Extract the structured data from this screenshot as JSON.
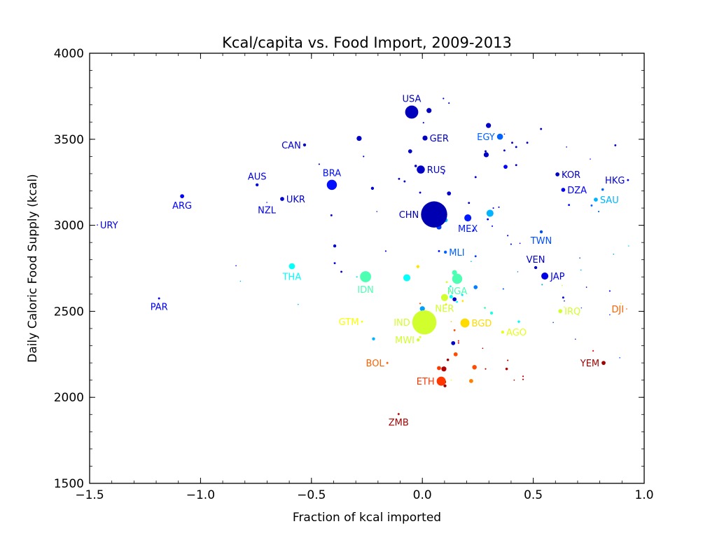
{
  "chart_data": {
    "type": "scatter",
    "title": "Kcal/capita vs. Food Import, 2009-2013",
    "xlabel": "Fraction of kcal imported",
    "ylabel": "Daily Caloric Food Supply (kcal)",
    "xlim": [
      -1.5,
      1.0
    ],
    "ylim": [
      1500,
      4000
    ],
    "xticks": [
      -1.5,
      -1.0,
      -0.5,
      0.0,
      0.5,
      1.0
    ],
    "xtick_labels": [
      "−1.5",
      "−1.0",
      "−0.5",
      "0.0",
      "0.5",
      "1.0"
    ],
    "yticks": [
      1500,
      2000,
      2500,
      3000,
      3500,
      4000
    ],
    "ytick_labels": [
      "1500",
      "2000",
      "2500",
      "3000",
      "3500",
      "4000"
    ],
    "grid": false,
    "legend": "none",
    "colormap": "jet",
    "color_note": "point color encodes a per-country value on the jet colormap (0 = dark blue, 1 = dark red); marker size encodes population",
    "labeled_points": [
      {
        "label": "URY",
        "x": -1.465,
        "y": 3002,
        "c": 0.1,
        "s": 1,
        "label_side": "right"
      },
      {
        "label": "ARG",
        "x": -1.083,
        "y": 3169,
        "c": 0.12,
        "s": 4,
        "label_side": "below"
      },
      {
        "label": "PAR",
        "x": -1.187,
        "y": 2575,
        "c": 0.12,
        "s": 2,
        "label_side": "below"
      },
      {
        "label": "AUS",
        "x": -0.745,
        "y": 3235,
        "c": 0.1,
        "s": 3,
        "label_side": "above"
      },
      {
        "label": "NZL",
        "x": -0.701,
        "y": 3133,
        "c": 0.1,
        "s": 1,
        "label_side": "below"
      },
      {
        "label": "UKR",
        "x": -0.632,
        "y": 3153,
        "c": 0.08,
        "s": 4,
        "label_side": "right"
      },
      {
        "label": "CAN",
        "x": -0.531,
        "y": 3467,
        "c": 0.08,
        "s": 3,
        "label_side": "left"
      },
      {
        "label": "BRA",
        "x": -0.408,
        "y": 3235,
        "c": 0.14,
        "s": 10,
        "label_side": "above"
      },
      {
        "label": "THA",
        "x": -0.588,
        "y": 2762,
        "c": 0.38,
        "s": 6,
        "label_side": "below"
      },
      {
        "label": "IDN",
        "x": -0.256,
        "y": 2701,
        "c": 0.45,
        "s": 11,
        "label_side": "below"
      },
      {
        "label": "USA",
        "x": -0.048,
        "y": 3658,
        "c": 0.06,
        "s": 13,
        "label_side": "above"
      },
      {
        "label": "GER",
        "x": 0.012,
        "y": 3507,
        "c": 0.06,
        "s": 5,
        "label_side": "right"
      },
      {
        "label": "RUS",
        "x": -0.007,
        "y": 3324,
        "c": 0.07,
        "s": 8,
        "label_side": "right"
      },
      {
        "label": "CHN",
        "x": 0.053,
        "y": 3063,
        "c": 0.05,
        "s": 26,
        "label_side": "left"
      },
      {
        "label": "MEX",
        "x": 0.205,
        "y": 3043,
        "c": 0.15,
        "s": 7,
        "label_side": "below"
      },
      {
        "label": "MLI",
        "x": 0.104,
        "y": 2844,
        "c": 0.22,
        "s": 3,
        "label_side": "right"
      },
      {
        "label": "EGY",
        "x": 0.35,
        "y": 3515,
        "c": 0.22,
        "s": 6,
        "label_side": "left"
      },
      {
        "label": "KOR",
        "x": 0.609,
        "y": 3296,
        "c": 0.07,
        "s": 4,
        "label_side": "right"
      },
      {
        "label": "DZA",
        "x": 0.635,
        "y": 3206,
        "c": 0.12,
        "s": 4,
        "label_side": "right"
      },
      {
        "label": "HKG",
        "x": 0.927,
        "y": 3263,
        "c": 0.08,
        "s": 2,
        "label_side": "left"
      },
      {
        "label": "SAU",
        "x": 0.782,
        "y": 3149,
        "c": 0.3,
        "s": 4,
        "label_side": "right"
      },
      {
        "label": "TWN",
        "x": 0.536,
        "y": 2962,
        "c": 0.2,
        "s": 3,
        "label_side": "below"
      },
      {
        "label": "VEN",
        "x": 0.511,
        "y": 2754,
        "c": 0.07,
        "s": 3,
        "label_side": "above"
      },
      {
        "label": "JAP",
        "x": 0.552,
        "y": 2705,
        "c": 0.1,
        "s": 7,
        "label_side": "right"
      },
      {
        "label": "NGA",
        "x": 0.157,
        "y": 2689,
        "c": 0.45,
        "s": 10,
        "label_side": "below"
      },
      {
        "label": "NER",
        "x": 0.1,
        "y": 2580,
        "c": 0.58,
        "s": 7,
        "label_side": "below"
      },
      {
        "label": "IND",
        "x": 0.009,
        "y": 2436,
        "c": 0.58,
        "s": 24,
        "label_side": "left"
      },
      {
        "label": "BGD",
        "x": 0.192,
        "y": 2432,
        "c": 0.66,
        "s": 9,
        "label_side": "right"
      },
      {
        "label": "GTM",
        "x": -0.272,
        "y": 2440,
        "c": 0.62,
        "s": 2,
        "label_side": "left"
      },
      {
        "label": "MWI",
        "x": -0.019,
        "y": 2334,
        "c": 0.58,
        "s": 3,
        "label_side": "left"
      },
      {
        "label": "AGO",
        "x": 0.362,
        "y": 2379,
        "c": 0.6,
        "s": 3,
        "label_side": "right"
      },
      {
        "label": "IRQ",
        "x": 0.622,
        "y": 2501,
        "c": 0.58,
        "s": 4,
        "label_side": "right"
      },
      {
        "label": "DJI",
        "x": 0.921,
        "y": 2514,
        "c": 0.78,
        "s": 1,
        "label_side": "left"
      },
      {
        "label": "BOL",
        "x": -0.158,
        "y": 2200,
        "c": 0.78,
        "s": 2,
        "label_side": "left"
      },
      {
        "label": "ETH",
        "x": 0.085,
        "y": 2094,
        "c": 0.82,
        "s": 9,
        "label_side": "left"
      },
      {
        "label": "YEM",
        "x": 0.817,
        "y": 2200,
        "c": 0.97,
        "s": 4,
        "label_side": "left"
      },
      {
        "label": "ZMB",
        "x": -0.107,
        "y": 1903,
        "c": 0.97,
        "s": 2,
        "label_side": "below"
      }
    ],
    "unlabeled_points": [
      {
        "x": 0.03,
        "y": 3667,
        "c": 0.06,
        "s": 5
      },
      {
        "x": 0.095,
        "y": 3737,
        "c": 0.06,
        "s": 1.5
      },
      {
        "x": 0.12,
        "y": 3710,
        "c": 0.06,
        "s": 1.5
      },
      {
        "x": 0.005,
        "y": 3596,
        "c": 0.06,
        "s": 1.5
      },
      {
        "x": -0.285,
        "y": 3505,
        "c": 0.07,
        "s": 5
      },
      {
        "x": -0.265,
        "y": 3400,
        "c": 0.07,
        "s": 1.5
      },
      {
        "x": -0.055,
        "y": 3430,
        "c": 0.07,
        "s": 4
      },
      {
        "x": -0.03,
        "y": 3345,
        "c": 0.07,
        "s": 2.5
      },
      {
        "x": 0.095,
        "y": 3300,
        "c": 0.1,
        "s": 1.5
      },
      {
        "x": -0.465,
        "y": 3355,
        "c": 0.07,
        "s": 1.5
      },
      {
        "x": -0.225,
        "y": 3215,
        "c": 0.08,
        "s": 3
      },
      {
        "x": -0.105,
        "y": 3270,
        "c": 0.08,
        "s": 2
      },
      {
        "x": -0.08,
        "y": 3255,
        "c": 0.08,
        "s": 2
      },
      {
        "x": -0.01,
        "y": 3190,
        "c": 0.08,
        "s": 2
      },
      {
        "x": 0.12,
        "y": 3185,
        "c": 0.08,
        "s": 4
      },
      {
        "x": 0.21,
        "y": 3130,
        "c": 0.08,
        "s": 2
      },
      {
        "x": -0.205,
        "y": 3080,
        "c": 0.15,
        "s": 1
      },
      {
        "x": -0.41,
        "y": 3058,
        "c": 0.08,
        "s": 2
      },
      {
        "x": 0.075,
        "y": 2990,
        "c": 0.18,
        "s": 5
      },
      {
        "x": 0.105,
        "y": 3030,
        "c": 0.3,
        "s": 4
      },
      {
        "x": 0.305,
        "y": 3070,
        "c": 0.3,
        "s": 7
      },
      {
        "x": 0.295,
        "y": 3035,
        "c": 0.07,
        "s": 2
      },
      {
        "x": 0.32,
        "y": 3100,
        "c": 0.1,
        "s": 1.5
      },
      {
        "x": 0.345,
        "y": 3105,
        "c": 0.1,
        "s": 1.5
      },
      {
        "x": 0.298,
        "y": 3580,
        "c": 0.07,
        "s": 5
      },
      {
        "x": 0.37,
        "y": 3530,
        "c": 0.1,
        "s": 1
      },
      {
        "x": 0.405,
        "y": 3480,
        "c": 0.07,
        "s": 2
      },
      {
        "x": 0.285,
        "y": 3430,
        "c": 0.07,
        "s": 2
      },
      {
        "x": 0.37,
        "y": 3435,
        "c": 0.07,
        "s": 2
      },
      {
        "x": 0.288,
        "y": 3410,
        "c": 0.07,
        "s": 5
      },
      {
        "x": 0.423,
        "y": 3455,
        "c": 0.07,
        "s": 2
      },
      {
        "x": 0.473,
        "y": 3480,
        "c": 0.07,
        "s": 2
      },
      {
        "x": 0.375,
        "y": 3340,
        "c": 0.12,
        "s": 4
      },
      {
        "x": 0.423,
        "y": 3350,
        "c": 0.07,
        "s": 2
      },
      {
        "x": 0.535,
        "y": 3560,
        "c": 0.07,
        "s": 2
      },
      {
        "x": 0.65,
        "y": 3455,
        "c": 0.1,
        "s": 1
      },
      {
        "x": 0.87,
        "y": 3465,
        "c": 0.07,
        "s": 2
      },
      {
        "x": 0.757,
        "y": 3385,
        "c": 0.12,
        "s": 1
      },
      {
        "x": 0.813,
        "y": 3208,
        "c": 0.22,
        "s": 2.5
      },
      {
        "x": 0.661,
        "y": 3118,
        "c": 0.15,
        "s": 2
      },
      {
        "x": 0.763,
        "y": 3115,
        "c": 0.22,
        "s": 2
      },
      {
        "x": 0.795,
        "y": 3080,
        "c": 0.22,
        "s": 1.5
      },
      {
        "x": 0.24,
        "y": 3280,
        "c": 0.07,
        "s": 2
      },
      {
        "x": 0.23,
        "y": 2970,
        "c": 0.1,
        "s": 2
      },
      {
        "x": 0.315,
        "y": 2995,
        "c": 0.15,
        "s": 1.5
      },
      {
        "x": 0.385,
        "y": 2940,
        "c": 0.1,
        "s": 1.5
      },
      {
        "x": 0.4,
        "y": 2890,
        "c": 0.15,
        "s": 1.5
      },
      {
        "x": 0.44,
        "y": 2895,
        "c": 0.1,
        "s": 1.2
      },
      {
        "x": 0.24,
        "y": 2820,
        "c": 0.18,
        "s": 2
      },
      {
        "x": 0.22,
        "y": 2790,
        "c": 0.3,
        "s": 1
      },
      {
        "x": 0.075,
        "y": 2850,
        "c": 0.15,
        "s": 2
      },
      {
        "x": -0.395,
        "y": 2880,
        "c": 0.08,
        "s": 3
      },
      {
        "x": -0.365,
        "y": 2730,
        "c": 0.08,
        "s": 2
      },
      {
        "x": -0.165,
        "y": 2850,
        "c": 0.1,
        "s": 1.5
      },
      {
        "x": -0.395,
        "y": 2780,
        "c": 0.12,
        "s": 2
      },
      {
        "x": -0.295,
        "y": 2700,
        "c": 0.35,
        "s": 1.5
      },
      {
        "x": -0.07,
        "y": 2695,
        "c": 0.38,
        "s": 7
      },
      {
        "x": -0.02,
        "y": 2760,
        "c": 0.65,
        "s": 3
      },
      {
        "x": 0.145,
        "y": 2725,
        "c": 0.45,
        "s": 5
      },
      {
        "x": 0.17,
        "y": 2685,
        "c": 0.07,
        "s": 4
      },
      {
        "x": 0.11,
        "y": 2670,
        "c": 0.58,
        "s": 2
      },
      {
        "x": 0.127,
        "y": 2645,
        "c": 0.4,
        "s": 2
      },
      {
        "x": 0.24,
        "y": 2640,
        "c": 0.25,
        "s": 4
      },
      {
        "x": 0.12,
        "y": 2615,
        "c": 0.58,
        "s": 2
      },
      {
        "x": 0.13,
        "y": 2585,
        "c": 0.38,
        "s": 3.5
      },
      {
        "x": 0.145,
        "y": 2570,
        "c": 0.07,
        "s": 4
      },
      {
        "x": 0.156,
        "y": 2555,
        "c": 0.38,
        "s": 2
      },
      {
        "x": 0.18,
        "y": 2595,
        "c": 0.35,
        "s": 2
      },
      {
        "x": 0.182,
        "y": 2560,
        "c": 0.65,
        "s": 2
      },
      {
        "x": 0.107,
        "y": 2540,
        "c": 0.65,
        "s": 2
      },
      {
        "x": 0.0,
        "y": 2515,
        "c": 0.28,
        "s": 5
      },
      {
        "x": -0.01,
        "y": 2545,
        "c": 0.8,
        "s": 1.5
      },
      {
        "x": 0.055,
        "y": 2437,
        "c": 0.38,
        "s": 3
      },
      {
        "x": 0.312,
        "y": 2490,
        "c": 0.4,
        "s": 3
      },
      {
        "x": 0.282,
        "y": 2520,
        "c": 0.45,
        "s": 2
      },
      {
        "x": 0.435,
        "y": 2440,
        "c": 0.38,
        "s": 2.5
      },
      {
        "x": 0.54,
        "y": 2655,
        "c": 0.3,
        "s": 1.5
      },
      {
        "x": 0.43,
        "y": 2730,
        "c": 0.25,
        "s": 1
      },
      {
        "x": 0.365,
        "y": 2630,
        "c": 0.22,
        "s": 1.5
      },
      {
        "x": 0.635,
        "y": 2580,
        "c": 0.1,
        "s": 2
      },
      {
        "x": 0.64,
        "y": 2560,
        "c": 0.15,
        "s": 1.2
      },
      {
        "x": 0.845,
        "y": 2618,
        "c": 0.12,
        "s": 1.5
      },
      {
        "x": 0.74,
        "y": 2640,
        "c": 0.1,
        "s": 1.2
      },
      {
        "x": 0.862,
        "y": 2832,
        "c": 0.3,
        "s": 1.2
      },
      {
        "x": 0.895,
        "y": 2545,
        "c": 0.65,
        "s": 1
      },
      {
        "x": 0.63,
        "y": 2650,
        "c": 0.58,
        "s": 1.2
      },
      {
        "x": 0.71,
        "y": 2810,
        "c": 0.2,
        "s": 1.2
      },
      {
        "x": 0.93,
        "y": 2880,
        "c": 0.35,
        "s": 1
      },
      {
        "x": -0.84,
        "y": 2765,
        "c": 0.1,
        "s": 1
      },
      {
        "x": -0.82,
        "y": 2675,
        "c": 0.3,
        "s": 1
      },
      {
        "x": -0.56,
        "y": 2540,
        "c": 0.3,
        "s": 1
      },
      {
        "x": -0.22,
        "y": 2340,
        "c": 0.3,
        "s": 3
      },
      {
        "x": -0.01,
        "y": 2350,
        "c": 0.6,
        "s": 2
      },
      {
        "x": 0.13,
        "y": 2440,
        "c": 0.7,
        "s": 1
      },
      {
        "x": 0.145,
        "y": 2390,
        "c": 0.8,
        "s": 2
      },
      {
        "x": 0.139,
        "y": 2315,
        "c": 0.07,
        "s": 4
      },
      {
        "x": 0.163,
        "y": 2328,
        "c": 0.9,
        "s": 1.5
      },
      {
        "x": 0.163,
        "y": 2316,
        "c": 0.9,
        "s": 1.5
      },
      {
        "x": 0.272,
        "y": 2285,
        "c": 0.95,
        "s": 1.2
      },
      {
        "x": 0.15,
        "y": 2250,
        "c": 0.8,
        "s": 4
      },
      {
        "x": 0.115,
        "y": 2218,
        "c": 0.97,
        "s": 2.5
      },
      {
        "x": 0.075,
        "y": 2170,
        "c": 0.82,
        "s": 4
      },
      {
        "x": 0.097,
        "y": 2165,
        "c": 0.95,
        "s": 5
      },
      {
        "x": 0.235,
        "y": 2175,
        "c": 0.8,
        "s": 4.5
      },
      {
        "x": 0.285,
        "y": 2165,
        "c": 0.95,
        "s": 1.5
      },
      {
        "x": 0.38,
        "y": 2165,
        "c": 0.95,
        "s": 2.5
      },
      {
        "x": 0.385,
        "y": 2215,
        "c": 0.95,
        "s": 1.5
      },
      {
        "x": 0.098,
        "y": 2090,
        "c": 0.97,
        "s": 4
      },
      {
        "x": 0.09,
        "y": 2080,
        "c": 0.95,
        "s": 2.5
      },
      {
        "x": 0.102,
        "y": 2067,
        "c": 0.97,
        "s": 3
      },
      {
        "x": 0.13,
        "y": 2100,
        "c": 0.6,
        "s": 1
      },
      {
        "x": 0.22,
        "y": 2095,
        "c": 0.75,
        "s": 4
      },
      {
        "x": 0.414,
        "y": 2100,
        "c": 0.95,
        "s": 1.2
      },
      {
        "x": 0.454,
        "y": 2122,
        "c": 0.92,
        "s": 1.5
      },
      {
        "x": 0.454,
        "y": 2104,
        "c": 0.95,
        "s": 1.5
      },
      {
        "x": 0.77,
        "y": 2270,
        "c": 0.88,
        "s": 1.5
      },
      {
        "x": 0.69,
        "y": 2338,
        "c": 0.15,
        "s": 1
      },
      {
        "x": 0.59,
        "y": 2435,
        "c": 0.2,
        "s": 1.2
      },
      {
        "x": 0.64,
        "y": 2525,
        "c": 0.6,
        "s": 1
      },
      {
        "x": 0.717,
        "y": 2520,
        "c": 0.2,
        "s": 1
      },
      {
        "x": 0.89,
        "y": 2230,
        "c": 0.2,
        "s": 1
      },
      {
        "x": 0.715,
        "y": 2740,
        "c": 0.3,
        "s": 1.2
      },
      {
        "x": 0.845,
        "y": 2480,
        "c": 0.15,
        "s": 1
      }
    ]
  }
}
